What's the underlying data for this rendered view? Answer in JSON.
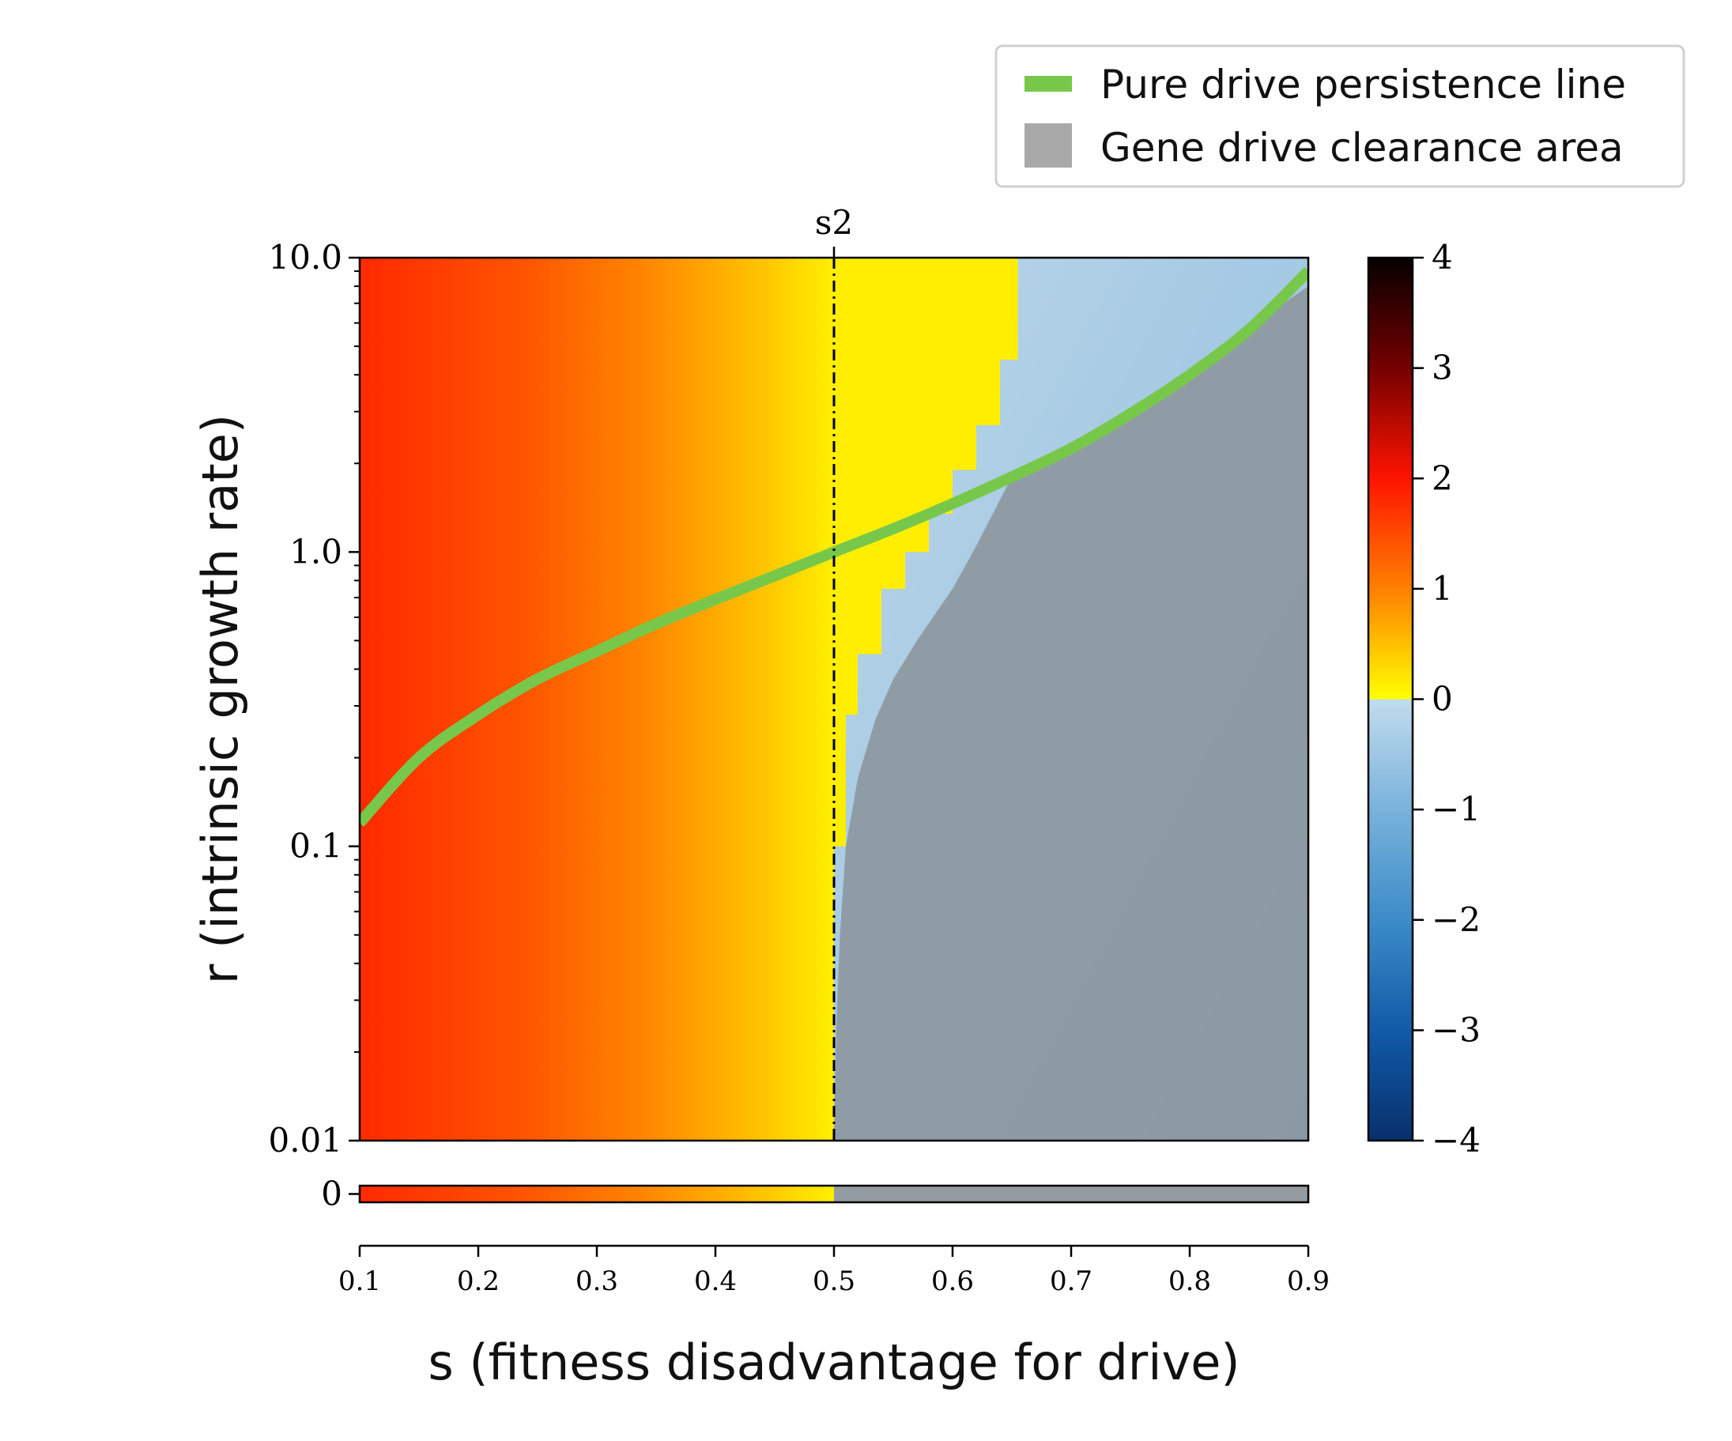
{
  "chart_data": {
    "type": "heatmap",
    "title": "",
    "xlabel": "s (fitness disadvantage for drive)",
    "ylabel": "r (intrinsic growth rate)",
    "xlim": [
      0.1,
      0.9
    ],
    "x_ticks": [
      0.1,
      0.2,
      0.3,
      0.4,
      0.5,
      0.6,
      0.7,
      0.8,
      0.9
    ],
    "x_tick_labels": [
      "0.1",
      "0.2",
      "0.3",
      "0.4",
      "0.5",
      "0.6",
      "0.7",
      "0.8",
      "0.9"
    ],
    "yscale": "log",
    "ylim": [
      0.01,
      10.0
    ],
    "y_ticks": [
      0.01,
      0.1,
      1.0,
      10.0
    ],
    "y_tick_labels": [
      "0.01",
      "0.1",
      "1.0",
      "10.0"
    ],
    "bottom_strip": {
      "r": 0,
      "label": "0"
    },
    "annotation": {
      "x": 0.5,
      "label": "s2",
      "style": "dash-dot vertical line"
    },
    "colorbar": {
      "range": [
        -4,
        4
      ],
      "ticks": [
        4,
        3,
        2,
        1,
        0,
        -1,
        -2,
        -3,
        -4
      ],
      "tick_labels": [
        "4",
        "3",
        "2",
        "1",
        "0",
        "−1",
        "−2",
        "−3",
        "−4"
      ],
      "positive_colormap": "hot (yellow to dark red)",
      "negative_colormap": "blues (light blue to dark blue)"
    },
    "series": [
      {
        "name": "Pure drive persistence line",
        "type": "line",
        "color": "#77c84a",
        "x": [
          0.1,
          0.15,
          0.2,
          0.25,
          0.3,
          0.35,
          0.4,
          0.45,
          0.5,
          0.55,
          0.6,
          0.65,
          0.7,
          0.75,
          0.8,
          0.85,
          0.9
        ],
        "y": [
          0.12,
          0.2,
          0.28,
          0.37,
          0.46,
          0.57,
          0.69,
          0.83,
          1.0,
          1.2,
          1.46,
          1.8,
          2.25,
          2.95,
          4.0,
          5.7,
          9.0
        ]
      },
      {
        "name": "Gene drive clearance area",
        "type": "area",
        "color": "#a9a9a9",
        "boundary_x": [
          0.5,
          0.502,
          0.505,
          0.51,
          0.52,
          0.535,
          0.55,
          0.57,
          0.6,
          0.62,
          0.65,
          0.7,
          0.75,
          0.8,
          0.85,
          0.9
        ],
        "boundary_y": [
          0.01,
          0.025,
          0.05,
          0.1,
          0.17,
          0.27,
          0.37,
          0.5,
          0.75,
          1.05,
          1.8,
          2.3,
          3.0,
          4.2,
          5.8,
          8.0
        ]
      }
    ],
    "heatmap_regions": {
      "positive_to_yellow_boundary_x": 0.5,
      "yellow_step_boundary_x": [
        0.5,
        0.51,
        0.52,
        0.54,
        0.56,
        0.58,
        0.6,
        0.62,
        0.64,
        0.655,
        0.675
      ],
      "yellow_step_boundary_y": [
        0.01,
        0.1,
        0.28,
        0.45,
        0.75,
        1.0,
        1.35,
        1.9,
        2.7,
        4.5,
        10.0
      ],
      "left_value": 1.9,
      "value_at_s2": 0.0
    },
    "legend": {
      "placement": "top-right (outside plot)",
      "entries": [
        "Pure drive persistence line",
        "Gene drive clearance area"
      ]
    }
  }
}
